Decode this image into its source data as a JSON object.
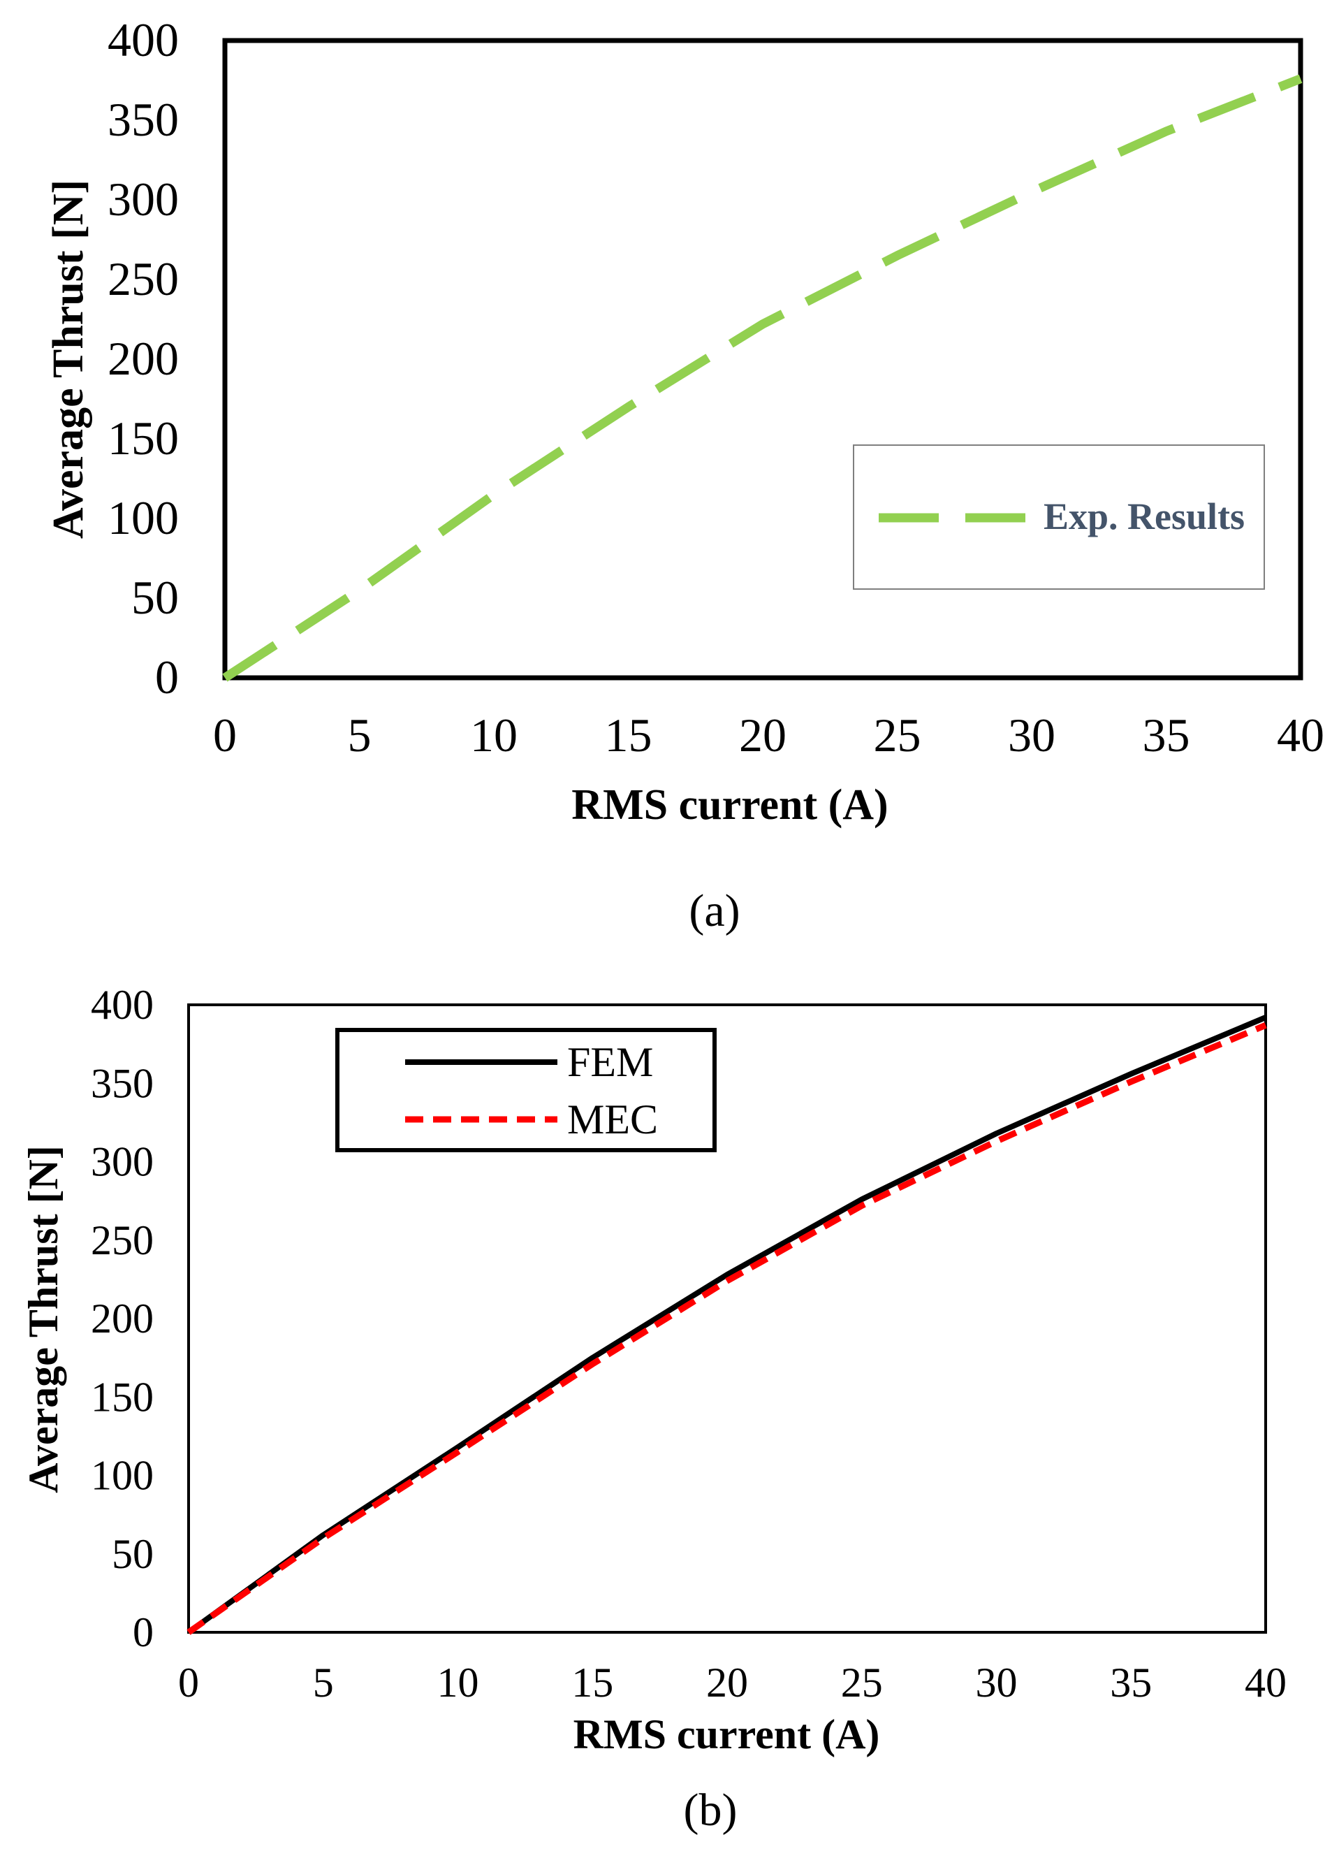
{
  "chart_data": [
    {
      "panel": "a",
      "type": "line",
      "xlabel": "RMS current (A)",
      "ylabel": "Average Thrust [N]",
      "xlim": [
        0,
        40
      ],
      "ylim": [
        0,
        400
      ],
      "xticks": [
        0,
        5,
        10,
        15,
        20,
        25,
        30,
        35,
        40
      ],
      "yticks": [
        0,
        50,
        100,
        150,
        200,
        250,
        300,
        350,
        400
      ],
      "legend_position": "center-right",
      "series": [
        {
          "name": "Exp. Results",
          "color": "#92d050",
          "style": "dashed",
          "x": [
            0,
            5,
            10,
            15,
            20,
            25,
            30,
            35,
            40
          ],
          "y": [
            0,
            55,
            115,
            170,
            222,
            265,
            305,
            343,
            376
          ]
        }
      ],
      "caption": "(a)"
    },
    {
      "panel": "b",
      "type": "line",
      "xlabel": "RMS current (A)",
      "ylabel": "Average Thrust  [N]",
      "xlim": [
        0,
        40
      ],
      "ylim": [
        0,
        400
      ],
      "xticks": [
        0,
        5,
        10,
        15,
        20,
        25,
        30,
        35,
        40
      ],
      "yticks": [
        0,
        50,
        100,
        150,
        200,
        250,
        300,
        350,
        400
      ],
      "legend_position": "top-left",
      "series": [
        {
          "name": "FEM",
          "color": "#000000",
          "style": "solid",
          "x": [
            0,
            5,
            10,
            15,
            20,
            25,
            30,
            35,
            40
          ],
          "y": [
            0,
            62,
            118,
            175,
            228,
            276,
            318,
            356,
            392
          ]
        },
        {
          "name": "MEC",
          "color": "#ff0000",
          "style": "dashed",
          "x": [
            0,
            5,
            10,
            15,
            20,
            25,
            30,
            35,
            40
          ],
          "y": [
            0,
            60,
            115,
            171,
            224,
            272,
            313,
            351,
            387
          ]
        }
      ],
      "caption": "(b)"
    }
  ]
}
